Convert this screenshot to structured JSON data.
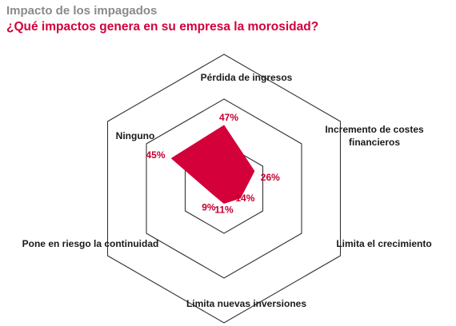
{
  "header": {
    "section_title": "Impacto de los impagados",
    "question": "¿Qué impactos genera en su empresa la morosidad?"
  },
  "colors": {
    "accent": "#d3003a",
    "section_title": "#8a8a8a",
    "grid": "#333333"
  },
  "chart_data": {
    "type": "radar",
    "title": "¿Qué impactos genera en su empresa la morosidad?",
    "unit": "%",
    "range": [
      0,
      100
    ],
    "grid_rings": 3,
    "categories": [
      {
        "label": [
          "Pérdida de ingresos"
        ],
        "value": 47,
        "value_label": "47%"
      },
      {
        "label": [
          "Incremento de costes",
          "financieros"
        ],
        "value": 26,
        "value_label": "26%"
      },
      {
        "label": [
          "Limita el crecimiento"
        ],
        "value": 14,
        "value_label": "14%"
      },
      {
        "label": [
          "Limita nuevas inversiones"
        ],
        "value": 11,
        "value_label": "11%"
      },
      {
        "label": [
          "Pone en riesgo la continuidad"
        ],
        "value": 9,
        "value_label": "9%"
      },
      {
        "label": [
          "Ninguno"
        ],
        "value": 45,
        "value_label": "45%"
      }
    ]
  }
}
